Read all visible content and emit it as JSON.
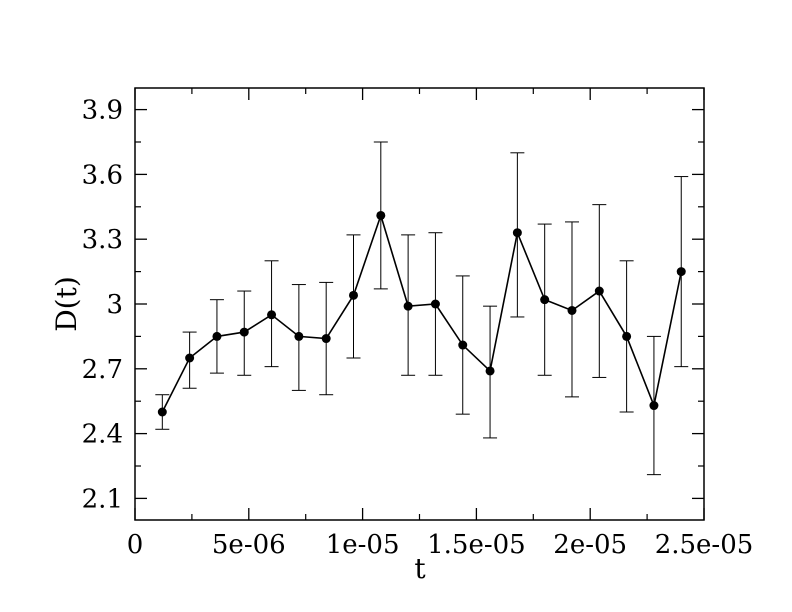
{
  "chart_data": {
    "type": "line",
    "xlabel": "t",
    "ylabel": "D(t)",
    "xlim": [
      0,
      2.5e-05
    ],
    "ylim": [
      2.0,
      4.0
    ],
    "x_ticks": [
      0,
      5e-06,
      1e-05,
      1.5e-05,
      2e-05,
      2.5e-05
    ],
    "x_tick_labels": [
      "0",
      "5e-06",
      "1e-05",
      "1.5e-05",
      "2e-05",
      "2.5e-05"
    ],
    "y_ticks": [
      2.1,
      2.4,
      2.7,
      3.0,
      3.3,
      3.6,
      3.9
    ],
    "y_tick_labels": [
      "2.1",
      "2.4",
      "2.7",
      "3",
      "3.3",
      "3.6",
      "3.9"
    ],
    "grid": false,
    "series": [
      {
        "marker": "circle",
        "color": "#000000",
        "x": [
          1.2e-06,
          2.4e-06,
          3.6e-06,
          4.8e-06,
          6e-06,
          7.2e-06,
          8.4e-06,
          9.6e-06,
          1.08e-05,
          1.2e-05,
          1.32e-05,
          1.44e-05,
          1.56e-05,
          1.68e-05,
          1.8e-05,
          1.92e-05,
          2.04e-05,
          2.16e-05,
          2.28e-05,
          2.4e-05
        ],
        "y": [
          2.5,
          2.75,
          2.85,
          2.87,
          2.95,
          2.85,
          2.84,
          3.04,
          3.41,
          2.99,
          3.0,
          2.81,
          2.69,
          3.33,
          3.02,
          2.97,
          3.06,
          2.85,
          2.53,
          3.15
        ],
        "y_low": [
          2.42,
          2.61,
          2.68,
          2.67,
          2.71,
          2.6,
          2.58,
          2.75,
          3.07,
          2.67,
          2.67,
          2.49,
          2.38,
          2.94,
          2.67,
          2.57,
          2.66,
          2.5,
          2.21,
          2.71
        ],
        "y_high": [
          2.58,
          2.87,
          3.02,
          3.06,
          3.2,
          3.09,
          3.1,
          3.32,
          3.75,
          3.32,
          3.33,
          3.13,
          2.99,
          3.7,
          3.37,
          3.38,
          3.46,
          3.2,
          2.85,
          3.59
        ]
      }
    ]
  }
}
